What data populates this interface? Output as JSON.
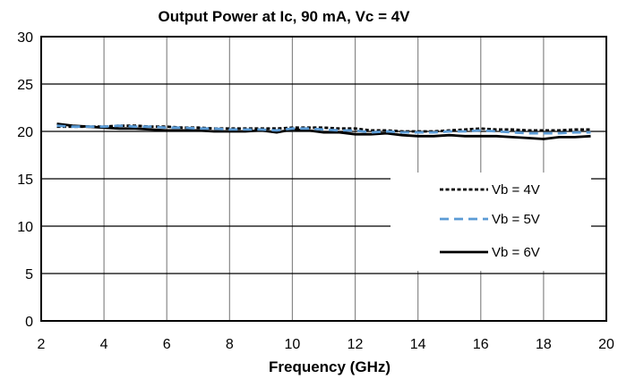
{
  "chart_data": {
    "type": "line",
    "title": "Output Power at Ic, 90 mA, Vc = 4V",
    "xlabel": "Frequency (GHz)",
    "ylabel": "",
    "xlim": [
      2,
      20
    ],
    "ylim": [
      0,
      30
    ],
    "x_ticks": [
      "2",
      "4",
      "6",
      "8",
      "10",
      "12",
      "14",
      "16",
      "18",
      "20"
    ],
    "y_ticks": [
      "0",
      "5",
      "10",
      "15",
      "20",
      "25",
      "30"
    ],
    "grid": true,
    "legend_position": "right",
    "series": [
      {
        "name": "Vb = 4V",
        "color": "#000000",
        "style": "dotted",
        "x": [
          2.5,
          3,
          3.5,
          4,
          4.5,
          5,
          5.5,
          6,
          6.5,
          7,
          7.5,
          8,
          8.5,
          9,
          9.5,
          10,
          10.5,
          11,
          11.5,
          12,
          12.5,
          13,
          13.5,
          14,
          14.5,
          15,
          15.5,
          16,
          16.5,
          17,
          17.5,
          18,
          18.5,
          19,
          19.5
        ],
        "y": [
          20.5,
          20.5,
          20.5,
          20.5,
          20.6,
          20.6,
          20.5,
          20.5,
          20.4,
          20.4,
          20.3,
          20.3,
          20.3,
          20.3,
          20.3,
          20.4,
          20.4,
          20.4,
          20.3,
          20.3,
          20.1,
          20.1,
          20.0,
          20.0,
          20.0,
          20.1,
          20.2,
          20.3,
          20.2,
          20.2,
          20.1,
          20.1,
          20.1,
          20.2,
          20.2
        ]
      },
      {
        "name": "Vb = 5V",
        "color": "#5b9bd5",
        "style": "dashed",
        "x": [
          2.5,
          3,
          3.5,
          4,
          4.5,
          5,
          5.5,
          6,
          6.5,
          7,
          7.5,
          8,
          8.5,
          9,
          9.5,
          10,
          10.5,
          11,
          11.5,
          12,
          12.5,
          13,
          13.5,
          14,
          14.5,
          15,
          15.5,
          16,
          16.5,
          17,
          17.5,
          18,
          18.5,
          19,
          19.5
        ],
        "y": [
          20.6,
          20.5,
          20.5,
          20.5,
          20.6,
          20.5,
          20.5,
          20.4,
          20.4,
          20.3,
          20.3,
          20.2,
          20.2,
          20.2,
          20.1,
          20.3,
          20.3,
          20.2,
          20.1,
          20.1,
          19.9,
          20.0,
          19.9,
          19.9,
          19.9,
          20.0,
          20.0,
          20.1,
          20.0,
          19.9,
          19.8,
          19.8,
          19.8,
          19.9,
          19.9
        ]
      },
      {
        "name": "Vb = 6V",
        "color": "#000000",
        "style": "solid",
        "x": [
          2.5,
          3,
          3.5,
          4,
          4.5,
          5,
          5.5,
          6,
          6.5,
          7,
          7.5,
          8,
          8.5,
          9,
          9.5,
          10,
          10.5,
          11,
          11.5,
          12,
          12.5,
          13,
          13.5,
          14,
          14.5,
          15,
          15.5,
          16,
          16.5,
          17,
          17.5,
          18,
          18.5,
          19,
          19.5
        ],
        "y": [
          20.8,
          20.6,
          20.5,
          20.4,
          20.3,
          20.3,
          20.2,
          20.1,
          20.1,
          20.1,
          20.0,
          20.0,
          20.0,
          20.1,
          19.9,
          20.2,
          20.1,
          19.9,
          19.9,
          19.7,
          19.7,
          19.8,
          19.6,
          19.5,
          19.5,
          19.6,
          19.5,
          19.5,
          19.5,
          19.4,
          19.3,
          19.2,
          19.4,
          19.4,
          19.5
        ]
      }
    ]
  }
}
